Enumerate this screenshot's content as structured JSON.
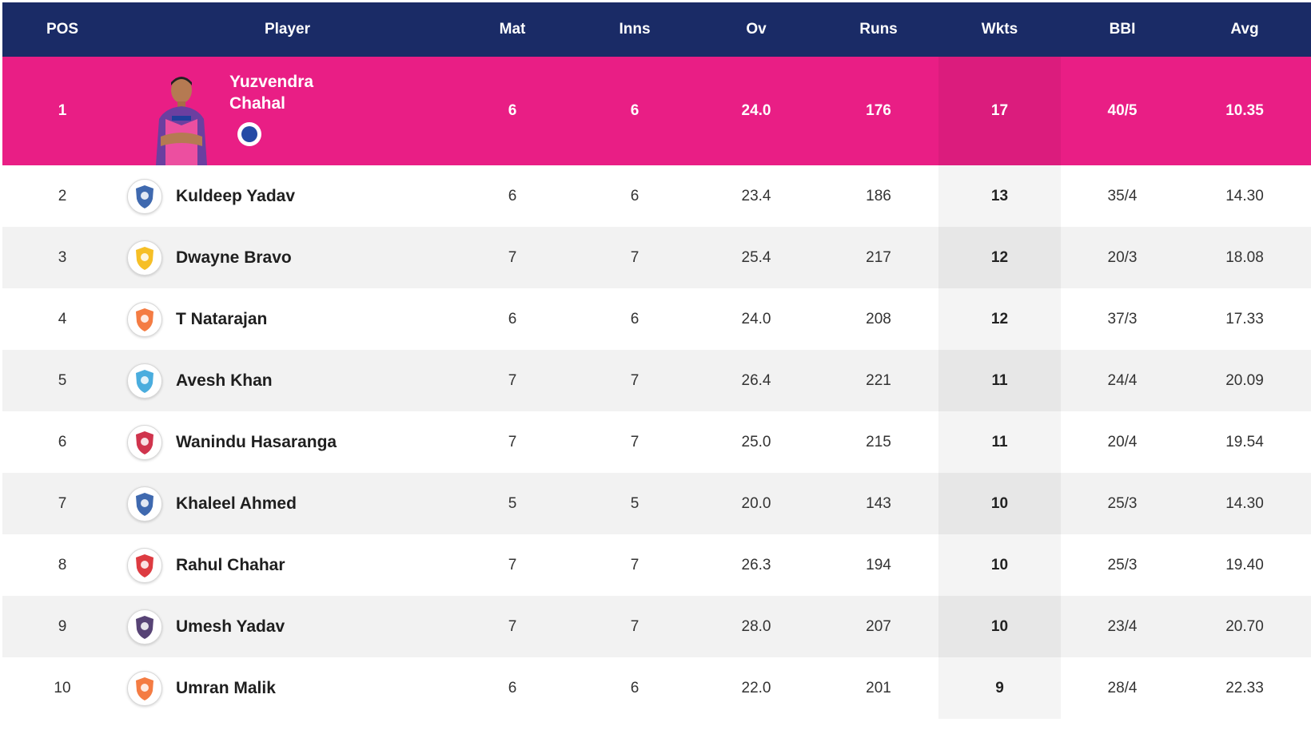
{
  "columns": {
    "pos": "POS",
    "player": "Player",
    "mat": "Mat",
    "inns": "Inns",
    "ov": "Ov",
    "runs": "Runs",
    "wkts": "Wkts",
    "bbi": "BBI",
    "avg": "Avg"
  },
  "colors": {
    "header_bg": "#1a2b66",
    "leader_bg": "#e91e85",
    "row_alt_bg": "#f2f2f2"
  },
  "leader": {
    "pos": "1",
    "name": "Yuzvendra Chahal",
    "team_icon": "rajasthan-royals-badge",
    "mat": "6",
    "inns": "6",
    "ov": "24.0",
    "runs": "176",
    "wkts": "17",
    "bbi": "40/5",
    "avg": "10.35"
  },
  "rows": [
    {
      "pos": "2",
      "name": "Kuldeep Yadav",
      "team_icon": "delhi-capitals-logo",
      "team_color": "#1d4fa1",
      "mat": "6",
      "inns": "6",
      "ov": "23.4",
      "runs": "186",
      "wkts": "13",
      "bbi": "35/4",
      "avg": "14.30"
    },
    {
      "pos": "3",
      "name": "Dwayne Bravo",
      "team_icon": "chennai-super-kings-logo",
      "team_color": "#f4b400",
      "mat": "7",
      "inns": "7",
      "ov": "25.4",
      "runs": "217",
      "wkts": "12",
      "bbi": "20/3",
      "avg": "18.08"
    },
    {
      "pos": "4",
      "name": "T Natarajan",
      "team_icon": "sunrisers-hyderabad-logo",
      "team_color": "#f26522",
      "mat": "6",
      "inns": "6",
      "ov": "24.0",
      "runs": "208",
      "wkts": "12",
      "bbi": "37/3",
      "avg": "17.33"
    },
    {
      "pos": "5",
      "name": "Avesh Khan",
      "team_icon": "lucknow-super-giants-logo",
      "team_color": "#2a9fd8",
      "mat": "7",
      "inns": "7",
      "ov": "26.4",
      "runs": "221",
      "wkts": "11",
      "bbi": "24/4",
      "avg": "20.09"
    },
    {
      "pos": "6",
      "name": "Wanindu Hasaranga",
      "team_icon": "royal-challengers-bangalore-logo",
      "team_color": "#c8102e",
      "mat": "7",
      "inns": "7",
      "ov": "25.0",
      "runs": "215",
      "wkts": "11",
      "bbi": "20/4",
      "avg": "19.54"
    },
    {
      "pos": "7",
      "name": "Khaleel Ahmed",
      "team_icon": "delhi-capitals-logo",
      "team_color": "#1d4fa1",
      "mat": "5",
      "inns": "5",
      "ov": "20.0",
      "runs": "143",
      "wkts": "10",
      "bbi": "25/3",
      "avg": "14.30"
    },
    {
      "pos": "8",
      "name": "Rahul Chahar",
      "team_icon": "punjab-kings-logo",
      "team_color": "#d71920",
      "mat": "7",
      "inns": "7",
      "ov": "26.3",
      "runs": "194",
      "wkts": "10",
      "bbi": "25/3",
      "avg": "19.40"
    },
    {
      "pos": "9",
      "name": "Umesh Yadav",
      "team_icon": "kolkata-knight-riders-logo",
      "team_color": "#3a225d",
      "mat": "7",
      "inns": "7",
      "ov": "28.0",
      "runs": "207",
      "wkts": "10",
      "bbi": "23/4",
      "avg": "20.70"
    },
    {
      "pos": "10",
      "name": "Umran Malik",
      "team_icon": "sunrisers-hyderabad-logo",
      "team_color": "#f26522",
      "mat": "6",
      "inns": "6",
      "ov": "22.0",
      "runs": "201",
      "wkts": "9",
      "bbi": "28/4",
      "avg": "22.33"
    }
  ]
}
